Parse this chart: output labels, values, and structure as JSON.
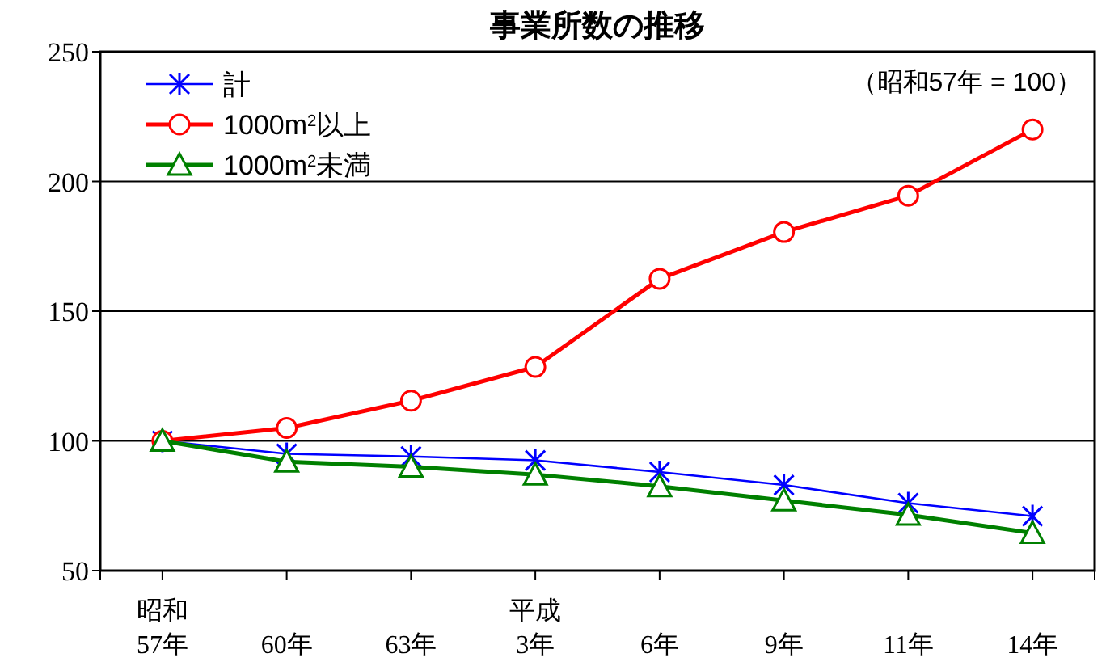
{
  "chart_data": {
    "type": "line",
    "title": "事業所数の推移",
    "annotations": [
      "（昭和57年 = 100）"
    ],
    "categories": [
      "昭和\n57年",
      "60年",
      "63年",
      "平成\n3年",
      "6年",
      "9年",
      "11年",
      "14年"
    ],
    "series": [
      {
        "name": "計",
        "color": "#0000ff",
        "marker": "cross",
        "values": [
          100,
          95,
          94,
          92.5,
          88,
          83,
          76,
          71
        ]
      },
      {
        "name": "1000m$^{2}$以上",
        "color": "#ff0000",
        "marker": "circle",
        "values": [
          100,
          105,
          115.5,
          128.5,
          162.5,
          180.5,
          194.5,
          220
        ]
      },
      {
        "name": "1000m$^{2}$未満",
        "color": "#008000",
        "marker": "triangle",
        "values": [
          100,
          92,
          90,
          87,
          82.5,
          77,
          71.5,
          64.5
        ]
      }
    ],
    "ylim": [
      50,
      250
    ],
    "yticks": [
      50,
      100,
      150,
      200,
      250
    ],
    "grid": "y",
    "legend": "top left"
  }
}
